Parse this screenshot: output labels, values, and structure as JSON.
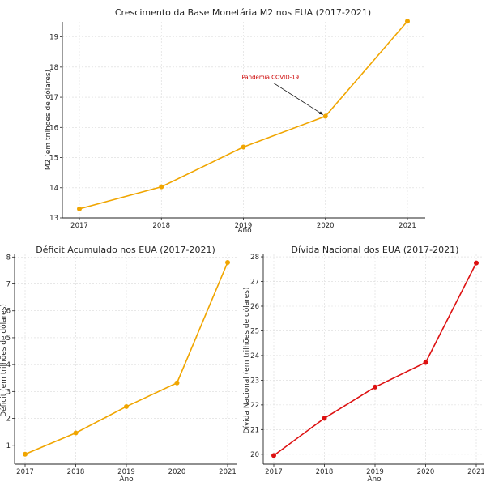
{
  "chart_data": [
    {
      "id": "m2",
      "type": "line",
      "title": "Crescimento da Base Monetária M2 nos EUA (2017-2021)",
      "xlabel": "Ano",
      "ylabel": "M2 (em trilhões de dólares)",
      "x": [
        2017,
        2018,
        2019,
        2020,
        2021
      ],
      "xticks": [
        "2017",
        "2018",
        "2019",
        "2020",
        "2021"
      ],
      "series": [
        {
          "values": [
            13.3,
            14.03,
            15.35,
            16.37,
            19.52
          ],
          "color": "#f0a500"
        }
      ],
      "ylim": [
        13,
        19.5
      ],
      "yticks": [
        13,
        14,
        15,
        16,
        17,
        18,
        19
      ],
      "grid": true,
      "annotation": {
        "text": "Pandemia COVID-19",
        "x": 2020,
        "y": 16.37,
        "color": "#cc0000"
      }
    },
    {
      "id": "deficit",
      "type": "line",
      "title": "Déficit Acumulado nos EUA (2017-2021)",
      "xlabel": "Ano",
      "ylabel": "Déficit (em trilhões de dólares)",
      "x": [
        2017,
        2018,
        2019,
        2020,
        2021
      ],
      "xticks": [
        "2017",
        "2018",
        "2019",
        "2020",
        "2021"
      ],
      "series": [
        {
          "values": [
            0.67,
            1.46,
            2.44,
            3.32,
            7.8
          ],
          "color": "#f0a500"
        }
      ],
      "ylim": [
        0.3,
        8.1
      ],
      "yticks": [
        1,
        2,
        3,
        4,
        5,
        6,
        7,
        8
      ],
      "grid": true
    },
    {
      "id": "debt",
      "type": "line",
      "title": "Dívida Nacional dos EUA (2017-2021)",
      "xlabel": "Ano",
      "ylabel": "Dívida Nacional (em trilhões de dólares)",
      "x": [
        2017,
        2018,
        2019,
        2020,
        2021
      ],
      "xticks": [
        "2017",
        "2018",
        "2019",
        "2020",
        "2021"
      ],
      "series": [
        {
          "values": [
            19.95,
            21.46,
            22.72,
            23.72,
            27.75
          ],
          "color": "#dd1111"
        }
      ],
      "ylim": [
        19.6,
        28.1
      ],
      "yticks": [
        20,
        21,
        22,
        23,
        24,
        25,
        26,
        27,
        28
      ],
      "grid": true
    }
  ]
}
